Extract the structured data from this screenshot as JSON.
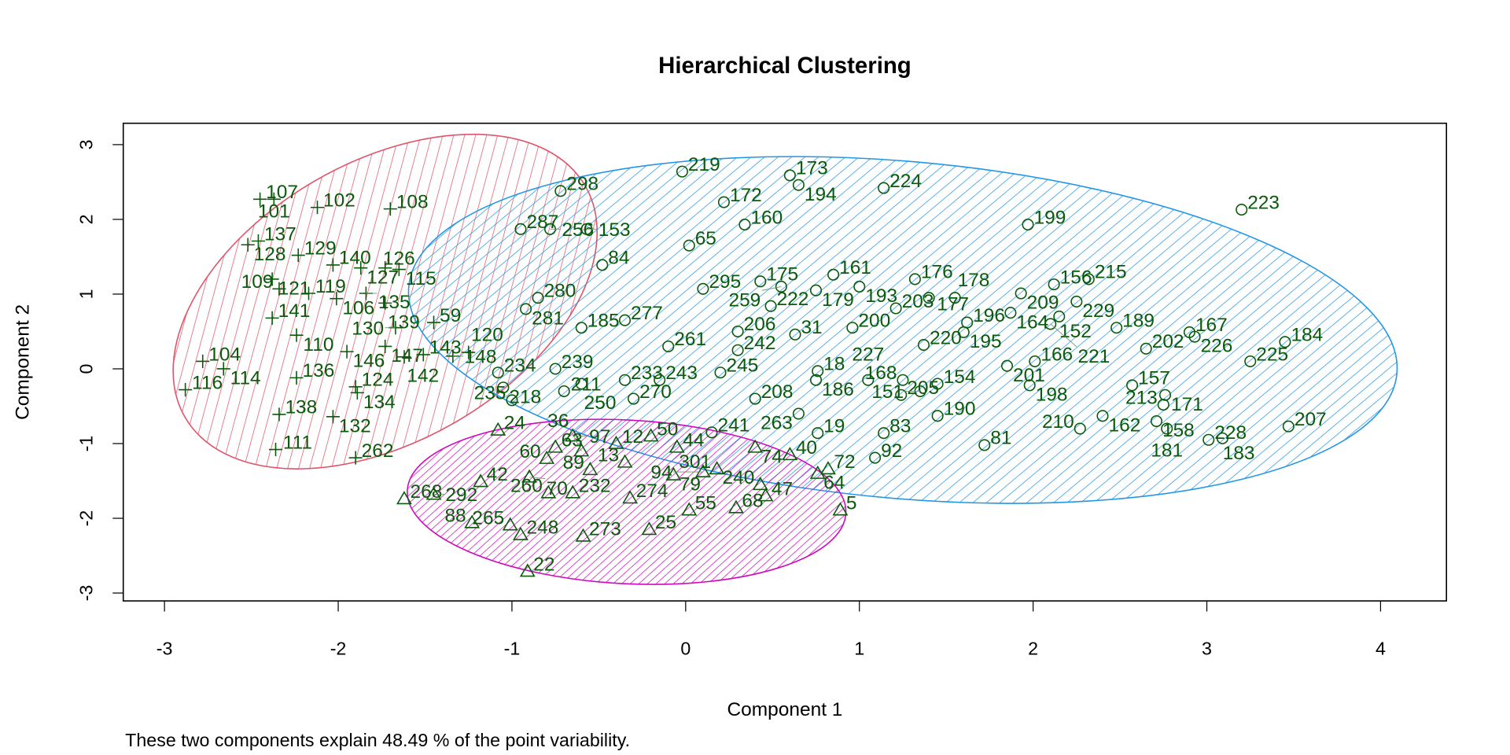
{
  "chart_data": {
    "type": "scatter",
    "title": "Hierarchical Clustering",
    "xlabel": "Component 1",
    "ylabel": "Component 2",
    "subtitle": "These two components explain 48.49 % of the point variability.",
    "xlim": [
      -3.25,
      4.38
    ],
    "ylim": [
      -3.17,
      3.24
    ],
    "x_ticks": [
      "-3",
      "-2",
      "-1",
      "0",
      "1",
      "2",
      "3",
      "4"
    ],
    "y_ticks": [
      "-3",
      "-2",
      "-1",
      "0",
      "1",
      "2",
      "3"
    ],
    "grid": false,
    "label_color": "#0b5a0b",
    "clusters": [
      {
        "name": "cluster-1",
        "marker": "plus",
        "color": "#DF536B",
        "ellipse": {
          "cx": -1.73,
          "cy": 0.9,
          "rx_units": 1.33,
          "ry_units": 1.87,
          "angle_deg": -30
        },
        "points": [
          [
            "107",
            -2.45,
            2.27
          ],
          [
            "101",
            -2.37,
            2.27
          ],
          [
            "102",
            -2.12,
            2.16
          ],
          [
            "108",
            -1.7,
            2.14
          ],
          [
            "137",
            -2.46,
            1.71
          ],
          [
            "128",
            -2.52,
            1.66
          ],
          [
            "129",
            -2.23,
            1.52
          ],
          [
            "140",
            -2.03,
            1.39
          ],
          [
            "127",
            -1.87,
            1.35
          ],
          [
            "126",
            -1.73,
            1.35
          ],
          [
            "115",
            -1.65,
            1.33
          ],
          [
            "121",
            -2.38,
            1.2
          ],
          [
            "109",
            -2.34,
            1.07
          ],
          [
            "119",
            -2.17,
            1.01
          ],
          [
            "106",
            -2.01,
            0.94
          ],
          [
            "135",
            -1.84,
            1.01
          ],
          [
            "139",
            -1.73,
            0.88
          ],
          [
            "141",
            -2.38,
            0.68
          ],
          [
            "110",
            -2.24,
            0.45
          ],
          [
            "130",
            -1.67,
            0.55
          ],
          [
            "147",
            -1.73,
            0.3
          ],
          [
            "146",
            -1.95,
            0.23
          ],
          [
            "104",
            -2.78,
            0.1
          ],
          [
            "114",
            -2.66,
            0.0
          ],
          [
            "116",
            -2.88,
            -0.28
          ],
          [
            "136",
            -2.24,
            -0.12
          ],
          [
            "124",
            -1.9,
            -0.24
          ],
          [
            "134",
            -1.89,
            -0.32
          ],
          [
            "138",
            -2.34,
            -0.61
          ],
          [
            "132",
            -2.03,
            -0.64
          ],
          [
            "111",
            -2.36,
            -1.08
          ],
          [
            "262",
            -1.9,
            -1.19
          ],
          [
            "59",
            -1.45,
            0.62
          ],
          [
            "143",
            -1.51,
            0.19
          ],
          [
            "148",
            -1.34,
            0.17
          ],
          [
            "142",
            -1.62,
            0.16
          ],
          [
            "120",
            -1.25,
            0.22
          ]
        ]
      },
      {
        "name": "cluster-2",
        "marker": "circle",
        "color": "#2297E6",
        "ellipse": {
          "cx": 1.25,
          "cy": 0.52,
          "rx_units": 2.85,
          "ry_units": 2.26,
          "angle_deg": 5
        },
        "points": [
          [
            "219",
            -0.02,
            2.64
          ],
          [
            "173",
            0.6,
            2.59
          ],
          [
            "194",
            0.65,
            2.46
          ],
          [
            "224",
            1.14,
            2.42
          ],
          [
            "298",
            -0.72,
            2.38
          ],
          [
            "172",
            0.22,
            2.23
          ],
          [
            "160",
            0.34,
            1.93
          ],
          [
            "223",
            3.2,
            2.13
          ],
          [
            "199",
            1.97,
            1.93
          ],
          [
            "287",
            -0.95,
            1.87
          ],
          [
            "256",
            -0.78,
            1.87
          ],
          [
            "153",
            -0.57,
            1.87
          ],
          [
            "65",
            0.02,
            1.65
          ],
          [
            "84",
            -0.48,
            1.39
          ],
          [
            "215",
            2.32,
            1.2
          ],
          [
            "156",
            2.12,
            1.13
          ],
          [
            "209",
            1.93,
            1.01
          ],
          [
            "176",
            1.32,
            1.2
          ],
          [
            "161",
            0.85,
            1.26
          ],
          [
            "175",
            0.43,
            1.17
          ],
          [
            "189",
            2.48,
            0.55
          ],
          [
            "167",
            2.9,
            0.49
          ],
          [
            "226",
            2.93,
            0.43
          ],
          [
            "202",
            2.65,
            0.27
          ],
          [
            "184",
            3.45,
            0.36
          ],
          [
            "225",
            3.25,
            0.1
          ],
          [
            "157",
            2.57,
            -0.22
          ],
          [
            "171",
            2.76,
            -0.35
          ],
          [
            "213",
            2.75,
            -0.48
          ],
          [
            "162",
            2.4,
            -0.63
          ],
          [
            "210",
            2.27,
            -0.8
          ],
          [
            "158",
            2.71,
            -0.7
          ],
          [
            "181",
            2.77,
            -0.8
          ],
          [
            "228",
            3.01,
            -0.95
          ],
          [
            "183",
            3.09,
            -0.93
          ],
          [
            "207",
            3.47,
            -0.77
          ],
          [
            "81",
            1.72,
            -1.02
          ],
          [
            "92",
            1.09,
            -1.19
          ],
          [
            "83",
            1.14,
            -0.86
          ],
          [
            "190",
            1.45,
            -0.63
          ],
          [
            "200",
            0.96,
            0.55
          ],
          [
            "31",
            0.63,
            0.46
          ],
          [
            "220",
            1.37,
            0.32
          ],
          [
            "196",
            1.62,
            0.62
          ],
          [
            "195",
            1.6,
            0.49
          ],
          [
            "164",
            1.87,
            0.75
          ],
          [
            "166",
            2.01,
            0.1
          ],
          [
            "201",
            1.85,
            0.04
          ],
          [
            "198",
            1.98,
            -0.22
          ],
          [
            "19",
            0.76,
            -0.86
          ],
          [
            "18",
            0.76,
            -0.03
          ],
          [
            "205",
            1.24,
            -0.35
          ],
          [
            "203",
            1.21,
            0.81
          ],
          [
            "222",
            0.49,
            0.84
          ],
          [
            "280",
            -0.85,
            0.95
          ],
          [
            "281",
            -0.92,
            0.8
          ],
          [
            "234",
            -1.08,
            -0.05
          ],
          [
            "218",
            -1.05,
            -0.25
          ],
          [
            "235",
            -1.0,
            -0.42
          ],
          [
            "277",
            -0.35,
            0.65
          ],
          [
            "295",
            0.1,
            1.07
          ],
          [
            "259",
            0.55,
            1.1
          ],
          [
            "179",
            0.75,
            1.05
          ],
          [
            "193",
            1.0,
            1.1
          ],
          [
            "177",
            1.4,
            0.95
          ],
          [
            "178",
            1.55,
            0.95
          ],
          [
            "229",
            2.25,
            0.9
          ],
          [
            "152",
            2.15,
            0.7
          ],
          [
            "221",
            2.1,
            0.6
          ],
          [
            "154",
            1.45,
            -0.2
          ],
          [
            "151",
            1.35,
            -0.3
          ],
          [
            "168",
            1.25,
            -0.15
          ],
          [
            "186",
            0.75,
            -0.15
          ],
          [
            "227",
            1.05,
            -0.15
          ],
          [
            "243",
            -0.15,
            -0.15
          ],
          [
            "233",
            -0.35,
            -0.15
          ],
          [
            "245",
            0.2,
            -0.05
          ],
          [
            "261",
            -0.1,
            0.3
          ],
          [
            "206",
            0.3,
            0.5
          ],
          [
            "185",
            -0.6,
            0.55
          ],
          [
            "239",
            -0.75,
            0.0
          ],
          [
            "211",
            -0.7,
            -0.3
          ],
          [
            "270",
            -0.3,
            -0.4
          ],
          [
            "208",
            0.4,
            -0.4
          ],
          [
            "263",
            0.65,
            -0.6
          ],
          [
            "241",
            0.15,
            -0.85
          ],
          [
            "250",
            -0.6,
            -0.2
          ],
          [
            "242",
            0.3,
            0.25
          ]
        ]
      },
      {
        "name": "cluster-3",
        "marker": "triangle",
        "color": "#CD0BBC",
        "ellipse": {
          "cx": -0.34,
          "cy": -1.78,
          "rx_units": 1.26,
          "ry_units": 1.1,
          "angle_deg": 3
        },
        "points": [
          [
            "22",
            -0.91,
            -2.71
          ],
          [
            "273",
            -0.59,
            -2.24
          ],
          [
            "248",
            -0.95,
            -2.22
          ],
          [
            "265",
            -1.01,
            -2.09
          ],
          [
            "88",
            -1.23,
            -2.06
          ],
          [
            "25",
            -0.21,
            -2.15
          ],
          [
            "55",
            0.02,
            -1.89
          ],
          [
            "68",
            0.29,
            -1.86
          ],
          [
            "47",
            0.46,
            -1.7
          ],
          [
            "240",
            0.43,
            -1.55
          ],
          [
            "5",
            0.89,
            -1.89
          ],
          [
            "72",
            0.82,
            -1.34
          ],
          [
            "64",
            0.76,
            -1.4
          ],
          [
            "40",
            0.6,
            -1.15
          ],
          [
            "274",
            -0.32,
            -1.73
          ],
          [
            "232",
            -0.65,
            -1.66
          ],
          [
            "260",
            -0.79,
            -1.66
          ],
          [
            "268",
            -1.62,
            -1.74
          ],
          [
            "292",
            -1.45,
            -1.68
          ],
          [
            "42",
            -1.18,
            -1.51
          ],
          [
            "24",
            -1.08,
            -0.82
          ],
          [
            "301",
            0.18,
            -1.34
          ],
          [
            "79",
            -0.07,
            -1.42
          ],
          [
            "94",
            0.1,
            -1.38
          ],
          [
            "13",
            -0.35,
            -1.25
          ],
          [
            "89",
            -0.55,
            -1.35
          ],
          [
            "60",
            -0.8,
            -1.2
          ],
          [
            "63",
            -0.75,
            -1.05
          ],
          [
            "50",
            -0.2,
            -0.9
          ],
          [
            "44",
            -0.05,
            -1.05
          ],
          [
            "74",
            0.4,
            -1.05
          ],
          [
            "97",
            -0.65,
            -0.9
          ],
          [
            "12",
            -0.4,
            -1.0
          ],
          [
            "70",
            -0.9,
            -1.45
          ],
          [
            "36",
            -0.6,
            -1.1
          ]
        ]
      }
    ]
  }
}
